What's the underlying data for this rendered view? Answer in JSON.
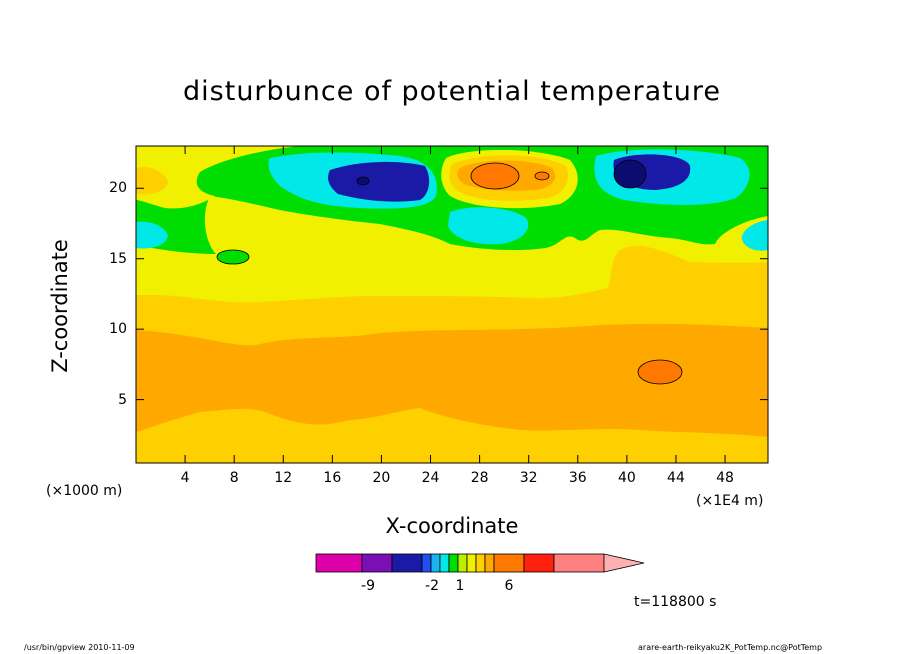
{
  "chart_data": {
    "type": "heatmap",
    "title": "disturbunce of potential temperature",
    "xlabel": "X-coordinate",
    "ylabel": "Z-coordinate",
    "x_unit_left": "(×1000 m)",
    "x_unit_right": "(×1E4 m)",
    "xlim": [
      0,
      51.5
    ],
    "ylim": [
      0.5,
      23
    ],
    "xticks": [
      "4",
      "8",
      "12",
      "16",
      "20",
      "24",
      "28",
      "32",
      "36",
      "40",
      "44",
      "48"
    ],
    "yticks": [
      "5",
      "10",
      "15",
      "20"
    ],
    "colorbar": {
      "colors": [
        "#dd00aa",
        "#7a10b4",
        "#1a1aa6",
        "#2050f0",
        "#1ab4f0",
        "#00e8e8",
        "#00dd00",
        "#b8f000",
        "#f0f000",
        "#ffd000",
        "#ffa800",
        "#ff7800",
        "#ff2010",
        "#ff8080",
        "#ffb0b0"
      ],
      "labels": [
        "-9",
        "-2",
        "1",
        "6"
      ]
    },
    "annotation": "t=118800 s"
  },
  "footer": {
    "left": "/usr/bin/gpview   2010-11-09",
    "right": "arare-earth-reikyaku2K_PotTemp.nc@PotTemp"
  }
}
